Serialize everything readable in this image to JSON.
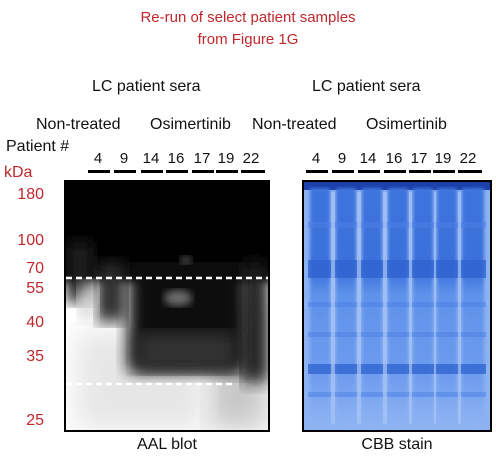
{
  "title_lines": [
    "Re-run of select patient samples",
    "from Figure 1G"
  ],
  "panels": [
    {
      "header": "LC patient sera",
      "group_labels": [
        "Non-treated",
        "Osimertinib"
      ],
      "lanes": [
        "4",
        "9",
        "14",
        "16",
        "17",
        "19",
        "22"
      ],
      "caption": "AAL blot"
    },
    {
      "header": "LC patient sera",
      "group_labels": [
        "Non-treated",
        "Osimertinib"
      ],
      "lanes": [
        "4",
        "9",
        "14",
        "16",
        "17",
        "19",
        "22"
      ],
      "caption": "CBB stain"
    }
  ],
  "patient_label": "Patient #",
  "kda_label": "kDa",
  "markers": [
    "180",
    "100",
    "70",
    "55",
    "40",
    "35",
    "25"
  ],
  "colors": {
    "title": "#c0282c",
    "marker": "#c0282c",
    "stain": "#4f83e6"
  }
}
